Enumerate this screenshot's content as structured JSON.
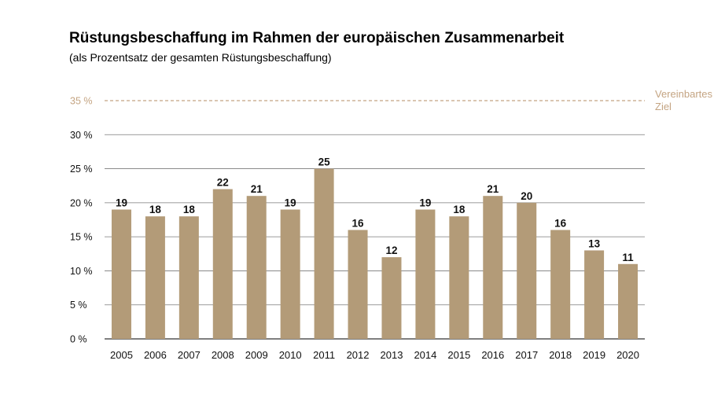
{
  "chart_data": {
    "type": "bar",
    "title": "Rüstungsbeschaffung im Rahmen der europäischen Zusammenarbeit",
    "subtitle": "(als Prozentsatz der gesamten Rüstungsbeschaffung)",
    "categories": [
      "2005",
      "2006",
      "2007",
      "2008",
      "2009",
      "2010",
      "2011",
      "2012",
      "2013",
      "2014",
      "2015",
      "2016",
      "2017",
      "2018",
      "2019",
      "2020"
    ],
    "values": [
      19,
      18,
      18,
      22,
      21,
      19,
      25,
      16,
      12,
      19,
      18,
      21,
      20,
      16,
      13,
      11
    ],
    "value_labels": [
      "19",
      "18",
      "18",
      "22",
      "21",
      "19",
      "25",
      "16",
      "12",
      "19",
      "18",
      "21",
      "20",
      "16",
      "13",
      "11"
    ],
    "ylim": [
      0,
      35
    ],
    "yticks": [
      0,
      5,
      10,
      15,
      20,
      25,
      30
    ],
    "ytick_labels": [
      "0 %",
      "5 %",
      "10 %",
      "15 %",
      "20 %",
      "25 %",
      "30 %"
    ],
    "grid": true,
    "target": {
      "value": 35,
      "tick_label": "35 %",
      "label_lines": [
        "Vereinbartes",
        "Ziel"
      ]
    },
    "colors": {
      "bar": "#b39b78",
      "target": "#c4a482",
      "grid": "#7a7a7a"
    }
  }
}
